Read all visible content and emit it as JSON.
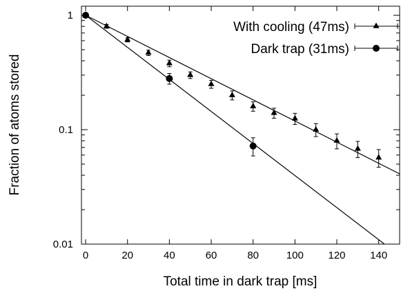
{
  "chart_data": {
    "type": "scatter",
    "title": "",
    "xlabel": "Total time in dark trap [ms]",
    "ylabel": "Fraction of atoms stored",
    "xlim": [
      -2,
      150
    ],
    "ylim": [
      0.01,
      1.2
    ],
    "yscale": "log",
    "grid": false,
    "legend_position": "top-right",
    "xticks": [
      0,
      20,
      40,
      60,
      80,
      100,
      120,
      140
    ],
    "xtick_labels": [
      "0",
      "20",
      "40",
      "60",
      "80",
      "100",
      "120",
      "140"
    ],
    "yticks": [
      1,
      0.1,
      0.01
    ],
    "ytick_labels": [
      "1",
      "0.1",
      "0.01"
    ],
    "series": [
      {
        "name": "With cooling (47ms)",
        "marker": "triangle",
        "x": [
          0,
          10,
          20,
          30,
          40,
          50,
          60,
          70,
          80,
          90,
          100,
          110,
          120,
          130,
          140
        ],
        "y": [
          1.0,
          0.8,
          0.61,
          0.47,
          0.38,
          0.3,
          0.25,
          0.2,
          0.16,
          0.14,
          0.125,
          0.1,
          0.08,
          0.068,
          0.057
        ],
        "err": [
          0.04,
          0.03,
          0.025,
          0.025,
          0.025,
          0.02,
          0.02,
          0.018,
          0.015,
          0.014,
          0.014,
          0.013,
          0.012,
          0.011,
          0.01
        ],
        "fit": {
          "tau": 47,
          "range": [
            0,
            150
          ]
        }
      },
      {
        "name": "Dark trap (31ms)",
        "marker": "circle",
        "x": [
          0,
          40,
          80
        ],
        "y": [
          1.0,
          0.28,
          0.072
        ],
        "err": [
          0.04,
          0.03,
          0.013
        ],
        "fit": {
          "tau": 31,
          "range": [
            0,
            150
          ]
        }
      }
    ]
  }
}
